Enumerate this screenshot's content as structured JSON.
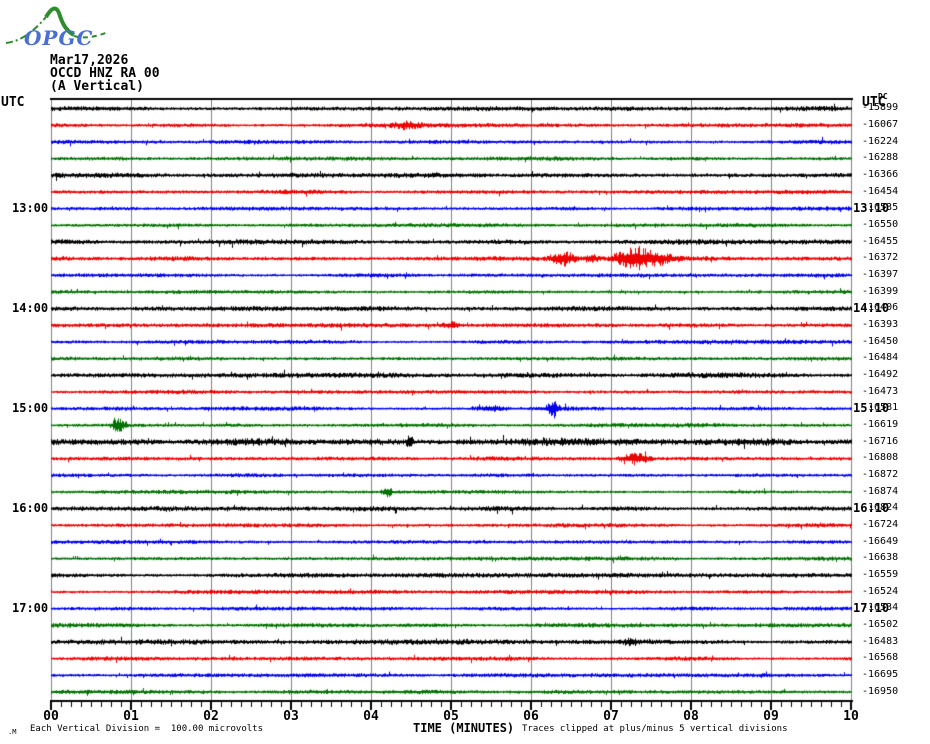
{
  "logo": {
    "text": "OPGC",
    "line_color": "#2e8b2e",
    "text_color": "#4a6fd4"
  },
  "header": {
    "date": "Mar17,2026",
    "station": "OCCD HNZ RA 00",
    "component": "(A Vertical)"
  },
  "axes": {
    "utc_left": "UTC",
    "utc_right": "UTC",
    "dc_header": "DC",
    "x_label": "TIME (MINUTES)",
    "x_ticks": [
      "00",
      "01",
      "02",
      "03",
      "04",
      "05",
      "06",
      "07",
      "08",
      "09",
      "10"
    ]
  },
  "footer": {
    "mark": ".M",
    "scale_note": "Each Vertical Division =  100.00 microvolts",
    "clip_note": "Traces clipped at plus/minus 5 vertical divisions"
  },
  "chart_data": {
    "type": "helicorder-seismogram",
    "title": "OCCD HNZ RA 00 (A Vertical) Mar17,2026",
    "xlabel": "TIME (MINUTES)",
    "x_range_minutes": [
      0,
      10
    ],
    "minutes_per_row": 10,
    "start_time_utc": "12:00",
    "microvolts_per_division": 100.0,
    "clip_divisions": 5,
    "grid_color": "#808080",
    "trace_colors": {
      "cycle": [
        "#000000",
        "#ee0000",
        "#0000ee",
        "#007200"
      ]
    },
    "hour_labels_left": [
      {
        "row": 6,
        "text": "13:00"
      },
      {
        "row": 12,
        "text": "14:00"
      },
      {
        "row": 18,
        "text": "15:00"
      },
      {
        "row": 24,
        "text": "16:00"
      },
      {
        "row": 30,
        "text": "17:00"
      }
    ],
    "hour_labels_right": [
      {
        "row": 6,
        "text": "13:10"
      },
      {
        "row": 12,
        "text": "14:10"
      },
      {
        "row": 18,
        "text": "15:10"
      },
      {
        "row": 24,
        "text": "16:10"
      },
      {
        "row": 30,
        "text": "17:10"
      }
    ],
    "rows": [
      {
        "start": "12:00",
        "dc": -15899,
        "noise": 1.3,
        "events": []
      },
      {
        "start": "12:10",
        "dc": -16067,
        "noise": 1.05,
        "events": [
          {
            "t": 4.45,
            "w": 0.25,
            "a": 2.2
          }
        ]
      },
      {
        "start": "12:20",
        "dc": -16224,
        "noise": 1.0,
        "events": []
      },
      {
        "start": "12:30",
        "dc": -16288,
        "noise": 1.0,
        "events": []
      },
      {
        "start": "12:40",
        "dc": -16366,
        "noise": 1.3,
        "events": []
      },
      {
        "start": "12:50",
        "dc": -16454,
        "noise": 1.05,
        "events": []
      },
      {
        "start": "13:00",
        "dc": -16535,
        "noise": 1.0,
        "events": []
      },
      {
        "start": "13:10",
        "dc": -16550,
        "noise": 1.0,
        "events": []
      },
      {
        "start": "13:20",
        "dc": -16455,
        "noise": 1.4,
        "events": []
      },
      {
        "start": "13:30",
        "dc": -16372,
        "noise": 1.2,
        "events": [
          {
            "t": 6.4,
            "w": 0.22,
            "a": 4.5
          },
          {
            "t": 6.75,
            "w": 0.12,
            "a": 2.5
          },
          {
            "t": 7.3,
            "w": 0.35,
            "a": 8
          },
          {
            "t": 7.65,
            "w": 0.25,
            "a": 3
          }
        ]
      },
      {
        "start": "13:40",
        "dc": -16397,
        "noise": 1.0,
        "events": []
      },
      {
        "start": "13:50",
        "dc": -16399,
        "noise": 1.0,
        "events": []
      },
      {
        "start": "14:00",
        "dc": -16406,
        "noise": 1.3,
        "events": []
      },
      {
        "start": "14:10",
        "dc": -16393,
        "noise": 1.05,
        "events": [
          {
            "t": 5.0,
            "w": 0.15,
            "a": 1.8
          }
        ]
      },
      {
        "start": "14:20",
        "dc": -16450,
        "noise": 1.0,
        "events": []
      },
      {
        "start": "14:30",
        "dc": -16484,
        "noise": 1.0,
        "events": []
      },
      {
        "start": "14:40",
        "dc": -16492,
        "noise": 1.3,
        "events": []
      },
      {
        "start": "14:50",
        "dc": -16473,
        "noise": 1.05,
        "events": []
      },
      {
        "start": "15:00",
        "dc": -16581,
        "noise": 1.0,
        "events": [
          {
            "t": 5.5,
            "w": 0.3,
            "a": 1.8
          },
          {
            "t": 6.27,
            "w": 0.1,
            "a": 7
          }
        ]
      },
      {
        "start": "15:10",
        "dc": -16619,
        "noise": 1.0,
        "events": [
          {
            "t": 0.85,
            "w": 0.13,
            "a": 4.5
          }
        ]
      },
      {
        "start": "15:20",
        "dc": -16716,
        "noise": 1.9,
        "events": [
          {
            "t": 4.48,
            "w": 0.05,
            "a": 8
          },
          {
            "t": 6.0,
            "w": 1.5,
            "a": 0.6
          }
        ]
      },
      {
        "start": "15:30",
        "dc": -16808,
        "noise": 1.05,
        "events": [
          {
            "t": 7.3,
            "w": 0.25,
            "a": 3.5
          }
        ]
      },
      {
        "start": "15:40",
        "dc": -16872,
        "noise": 1.0,
        "events": []
      },
      {
        "start": "15:50",
        "dc": -16874,
        "noise": 1.0,
        "events": [
          {
            "t": 4.2,
            "w": 0.09,
            "a": 3.5
          }
        ]
      },
      {
        "start": "16:00",
        "dc": -16824,
        "noise": 1.3,
        "events": []
      },
      {
        "start": "16:10",
        "dc": -16724,
        "noise": 1.05,
        "events": []
      },
      {
        "start": "16:20",
        "dc": -16649,
        "noise": 1.0,
        "events": []
      },
      {
        "start": "16:30",
        "dc": -16638,
        "noise": 1.0,
        "events": []
      },
      {
        "start": "16:40",
        "dc": -16559,
        "noise": 1.15,
        "events": []
      },
      {
        "start": "16:50",
        "dc": -16524,
        "noise": 1.05,
        "events": []
      },
      {
        "start": "17:00",
        "dc": -16534,
        "noise": 1.0,
        "events": []
      },
      {
        "start": "17:10",
        "dc": -16502,
        "noise": 1.0,
        "events": []
      },
      {
        "start": "17:20",
        "dc": -16483,
        "noise": 1.3,
        "events": [
          {
            "t": 7.25,
            "w": 0.1,
            "a": 2.5
          }
        ]
      },
      {
        "start": "17:30",
        "dc": -16568,
        "noise": 1.05,
        "events": []
      },
      {
        "start": "17:40",
        "dc": -16695,
        "noise": 1.0,
        "events": []
      },
      {
        "start": "17:50",
        "dc": -16950,
        "noise": 1.0,
        "events": []
      }
    ]
  }
}
